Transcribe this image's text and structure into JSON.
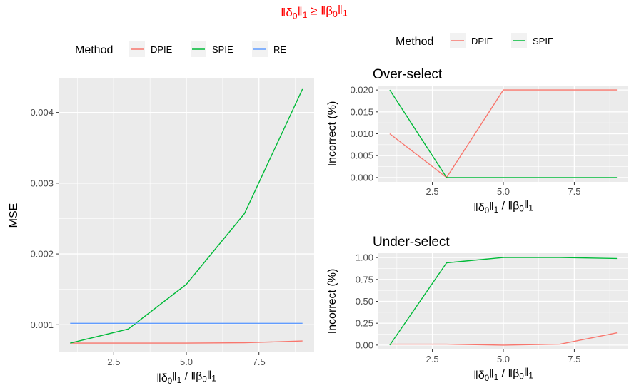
{
  "title": {
    "text": "‖δ0‖1 ≥ ‖β0‖1",
    "parts": [
      {
        "t": "‖δ"
      },
      {
        "t": "0",
        "sub": true
      },
      {
        "t": "‖"
      },
      {
        "t": "1",
        "sub": true
      },
      {
        "t": " ≥ ‖β"
      },
      {
        "t": "0",
        "sub": true
      },
      {
        "t": "‖"
      },
      {
        "t": "1",
        "sub": true
      }
    ],
    "color": "#ff0000"
  },
  "x_label": {
    "text": "‖δ0‖1 / ‖β0‖1",
    "parts": [
      {
        "t": "‖δ"
      },
      {
        "t": "0",
        "sub": true
      },
      {
        "t": "‖"
      },
      {
        "t": "1",
        "sub": true
      },
      {
        "t": " / ‖β"
      },
      {
        "t": "0",
        "sub": true
      },
      {
        "t": "‖"
      },
      {
        "t": "1",
        "sub": true
      }
    ]
  },
  "colors": {
    "DPIE": "#f8766d",
    "SPIE": "#00ba38",
    "RE": "#619cff",
    "panel_bg": "#ebebeb",
    "grid": "#ffffff"
  },
  "chart_data": [
    {
      "id": "mse",
      "type": "line",
      "title": "",
      "xlabel": "‖δ0‖1 / ‖β0‖1",
      "ylabel": "MSE",
      "xlim": [
        0.6,
        9.4
      ],
      "ylim": [
        0.00061,
        0.00448
      ],
      "x_ticks": [
        2.5,
        5.0,
        7.5
      ],
      "x_tick_labels": [
        "2.5",
        "5.0",
        "7.5"
      ],
      "y_ticks": [
        0.001,
        0.002,
        0.003,
        0.004
      ],
      "y_tick_labels": [
        "0.001",
        "0.002",
        "0.003",
        "0.004"
      ],
      "grid": true,
      "legend": {
        "title": "Method",
        "position": "top",
        "entries": [
          "DPIE",
          "SPIE",
          "RE"
        ]
      },
      "x": [
        1,
        3,
        5,
        7,
        9
      ],
      "series": [
        {
          "name": "DPIE",
          "values": [
            0.00074,
            0.00074,
            0.00074,
            0.000745,
            0.00077
          ]
        },
        {
          "name": "SPIE",
          "values": [
            0.00074,
            0.00094,
            0.00157,
            0.00257,
            0.00433
          ]
        },
        {
          "name": "RE",
          "values": [
            0.00102,
            0.00102,
            0.00102,
            0.00102,
            0.00102
          ]
        }
      ]
    },
    {
      "id": "over",
      "type": "line",
      "title": "Over-select",
      "xlabel": "‖δ0‖1 / ‖β0‖1",
      "ylabel": "Incorrect (%)",
      "xlim": [
        0.6,
        9.4
      ],
      "ylim": [
        -0.001,
        0.021
      ],
      "x_ticks": [
        2.5,
        5.0,
        7.5
      ],
      "x_tick_labels": [
        "2.5",
        "5.0",
        "7.5"
      ],
      "y_ticks": [
        0.0,
        0.005,
        0.01,
        0.015,
        0.02
      ],
      "y_tick_labels": [
        "0.000",
        "0.005",
        "0.010",
        "0.015",
        "0.020"
      ],
      "grid": true,
      "legend": {
        "title": "Method",
        "position": "top",
        "entries": [
          "DPIE",
          "SPIE"
        ]
      },
      "x": [
        1,
        3,
        5,
        7,
        9
      ],
      "series": [
        {
          "name": "DPIE",
          "values": [
            0.01,
            0.0,
            0.02,
            0.02,
            0.02
          ]
        },
        {
          "name": "SPIE",
          "values": [
            0.02,
            0.0,
            0.0,
            0.0,
            0.0
          ]
        }
      ]
    },
    {
      "id": "under",
      "type": "line",
      "title": "Under-select",
      "xlabel": "‖δ0‖1 / ‖β0‖1",
      "ylabel": "Incorrect (%)",
      "xlim": [
        0.6,
        9.4
      ],
      "ylim": [
        -0.05,
        1.05
      ],
      "x_ticks": [
        2.5,
        5.0,
        7.5
      ],
      "x_tick_labels": [
        "2.5",
        "5.0",
        "7.5"
      ],
      "y_ticks": [
        0.0,
        0.25,
        0.5,
        0.75,
        1.0
      ],
      "y_tick_labels": [
        "0.00",
        "0.25",
        "0.50",
        "0.75",
        "1.00"
      ],
      "grid": true,
      "x": [
        1,
        3,
        5,
        7,
        9
      ],
      "series": [
        {
          "name": "DPIE",
          "values": [
            0.01,
            0.01,
            0.0,
            0.01,
            0.14
          ]
        },
        {
          "name": "SPIE",
          "values": [
            0.0,
            0.94,
            1.0,
            1.0,
            0.99
          ]
        }
      ]
    }
  ]
}
